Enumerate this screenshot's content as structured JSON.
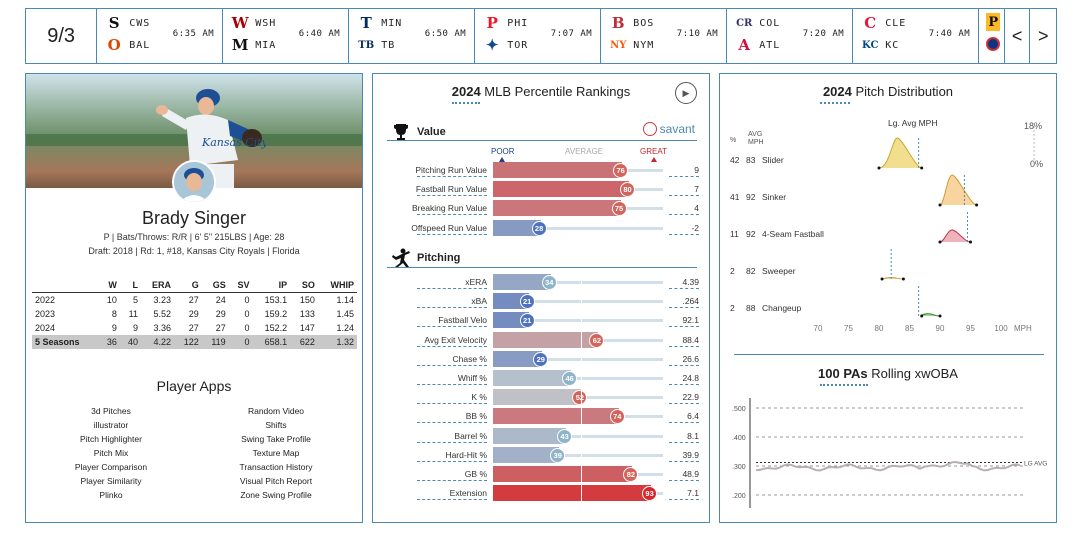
{
  "scoreboard": {
    "date": "9/3",
    "games": [
      {
        "away": "CWS",
        "home": "BAL",
        "time": "6:35 AM",
        "away_color": "#111",
        "home_color": "#df4601",
        "away_glyph": "S",
        "home_glyph": "O"
      },
      {
        "away": "WSH",
        "home": "MIA",
        "time": "6:40 AM",
        "away_color": "#ab0003",
        "home_color": "#111",
        "away_glyph": "W",
        "home_glyph": "M"
      },
      {
        "away": "MIN",
        "home": "TB",
        "time": "6:50 AM",
        "away_color": "#002b5c",
        "home_color": "#092c5c",
        "away_glyph": "T",
        "home_glyph": "TB"
      },
      {
        "away": "PHI",
        "home": "TOR",
        "time": "7:07 AM",
        "away_color": "#e81828",
        "home_color": "#134a8e",
        "away_glyph": "P",
        "home_glyph": "✦"
      },
      {
        "away": "BOS",
        "home": "NYM",
        "time": "7:10 AM",
        "away_color": "#bd3039",
        "home_color": "#ff5910",
        "away_glyph": "B",
        "home_glyph": "NY"
      },
      {
        "away": "COL",
        "home": "ATL",
        "time": "7:20 AM",
        "away_color": "#333366",
        "home_color": "#ce1141",
        "away_glyph": "CR",
        "home_glyph": "A"
      },
      {
        "away": "CLE",
        "home": "KC",
        "time": "7:40 AM",
        "away_color": "#e31937",
        "home_color": "#004687",
        "away_glyph": "C",
        "home_glyph": "KC"
      }
    ],
    "prev_label": "<",
    "next_label": ">"
  },
  "player": {
    "name": "Brady Singer",
    "info_line1": "P | Bats/Throws: R/R | 6' 5\" 215LBS | Age: 28",
    "info_line2": "Draft: 2018 | Rd: 1, #18, Kansas City Royals | Florida",
    "stats_headers": [
      "",
      "W",
      "L",
      "ERA",
      "G",
      "GS",
      "SV",
      "IP",
      "SO",
      "WHIP"
    ],
    "stats_rows": [
      [
        "2022",
        "10",
        "5",
        "3.23",
        "27",
        "24",
        "0",
        "153.1",
        "150",
        "1.14"
      ],
      [
        "2023",
        "8",
        "11",
        "5.52",
        "29",
        "29",
        "0",
        "159.2",
        "133",
        "1.45"
      ],
      [
        "2024",
        "9",
        "9",
        "3.36",
        "27",
        "27",
        "0",
        "152.2",
        "147",
        "1.24"
      ]
    ],
    "stats_total": [
      "5 Seasons",
      "36",
      "40",
      "4.22",
      "122",
      "119",
      "0",
      "658.1",
      "622",
      "1.32"
    ],
    "apps_title": "Player Apps",
    "apps_left": [
      "3d Pitches",
      "illustrator",
      "Pitch Highlighter",
      "Pitch Mix",
      "Player Comparison",
      "Player Similarity",
      "Plinko"
    ],
    "apps_right": [
      "Random Video",
      "Shifts",
      "Swing Take Profile",
      "Texture Map",
      "Transaction History",
      "Visual Pitch Report",
      "Zone Swing Profile"
    ]
  },
  "percentiles": {
    "title_year": "2024",
    "title_rest": " MLB Percentile Rankings",
    "brand": "savant",
    "scale_poor": "POOR",
    "scale_avg": "AVERAGE",
    "scale_great": "GREAT",
    "value_section": "Value",
    "pitching_section": "Pitching",
    "value_metrics": [
      {
        "label": "Pitching Run Value",
        "pct": 76,
        "value": "9"
      },
      {
        "label": "Fastball Run Value",
        "pct": 80,
        "value": "7"
      },
      {
        "label": "Breaking Run Value",
        "pct": 75,
        "value": "4"
      },
      {
        "label": "Offspeed Run Value",
        "pct": 28,
        "value": "-2"
      }
    ],
    "pitching_metrics": [
      {
        "label": "xERA",
        "pct": 34,
        "value": "4.39"
      },
      {
        "label": "xBA",
        "pct": 21,
        "value": ".264"
      },
      {
        "label": "Fastball Velo",
        "pct": 21,
        "value": "92.1"
      },
      {
        "label": "Avg Exit Velocity",
        "pct": 62,
        "value": "88.4"
      },
      {
        "label": "Chase %",
        "pct": 29,
        "value": "26.6"
      },
      {
        "label": "Whiff %",
        "pct": 46,
        "value": "24.8"
      },
      {
        "label": "K %",
        "pct": 52,
        "value": "22.9"
      },
      {
        "label": "BB %",
        "pct": 74,
        "value": "6.4"
      },
      {
        "label": "Barrel %",
        "pct": 43,
        "value": "8.1"
      },
      {
        "label": "Hard-Hit %",
        "pct": 39,
        "value": "39.9"
      },
      {
        "label": "GB %",
        "pct": 82,
        "value": "48.9"
      },
      {
        "label": "Extension",
        "pct": 93,
        "value": "7.1"
      }
    ]
  },
  "pitch_distribution": {
    "title_year": "2024",
    "title_rest": " Pitch Distribution",
    "lg_avg_label": "Lg. Avg MPH",
    "col_pct": "%",
    "col_avg": "AVG",
    "col_mph": "MPH",
    "right_top": "18%",
    "right_bottom": "0%",
    "axis_unit": "MPH",
    "x_ticks": [
      "70",
      "75",
      "80",
      "85",
      "90",
      "95",
      "100"
    ],
    "pitches": [
      {
        "pct": "42",
        "avg": "83",
        "name": "Slider",
        "color": "#eed36a",
        "stroke": "#c9a82e",
        "lg": 86.5,
        "min": 80,
        "max": 87,
        "peak": 1.0
      },
      {
        "pct": "41",
        "avg": "92",
        "name": "Sinker",
        "color": "#f5c77f",
        "stroke": "#d49a3a",
        "lg": 94,
        "min": 90,
        "max": 96,
        "peak": 1.0
      },
      {
        "pct": "11",
        "avg": "92",
        "name": "4-Seam Fastball",
        "color": "#e99aa6",
        "stroke": "#c2334d",
        "lg": 94.5,
        "min": 90,
        "max": 95,
        "peak": 0.4
      },
      {
        "pct": "2",
        "avg": "82",
        "name": "Sweeper",
        "color": "#f5c77f",
        "stroke": "#d49a3a",
        "lg": 82,
        "min": 80.5,
        "max": 84,
        "peak": 0.05
      },
      {
        "pct": "2",
        "avg": "88",
        "name": "Changeup",
        "color": "#7ecb7a",
        "stroke": "#2f8f2a",
        "lg": 86.5,
        "min": 87,
        "max": 90,
        "peak": 0.08
      }
    ]
  },
  "rolling": {
    "title_bold": "100 PAs",
    "title_rest": " Rolling xwOBA",
    "lg_label": "LG AVG",
    "y_ticks": [
      ".500",
      ".400",
      ".300",
      ".200"
    ],
    "lg_avg": 0.312
  },
  "colors": {
    "accent": "#4a8ab0",
    "great": "#c3262e",
    "poor": "#1f3f86"
  }
}
